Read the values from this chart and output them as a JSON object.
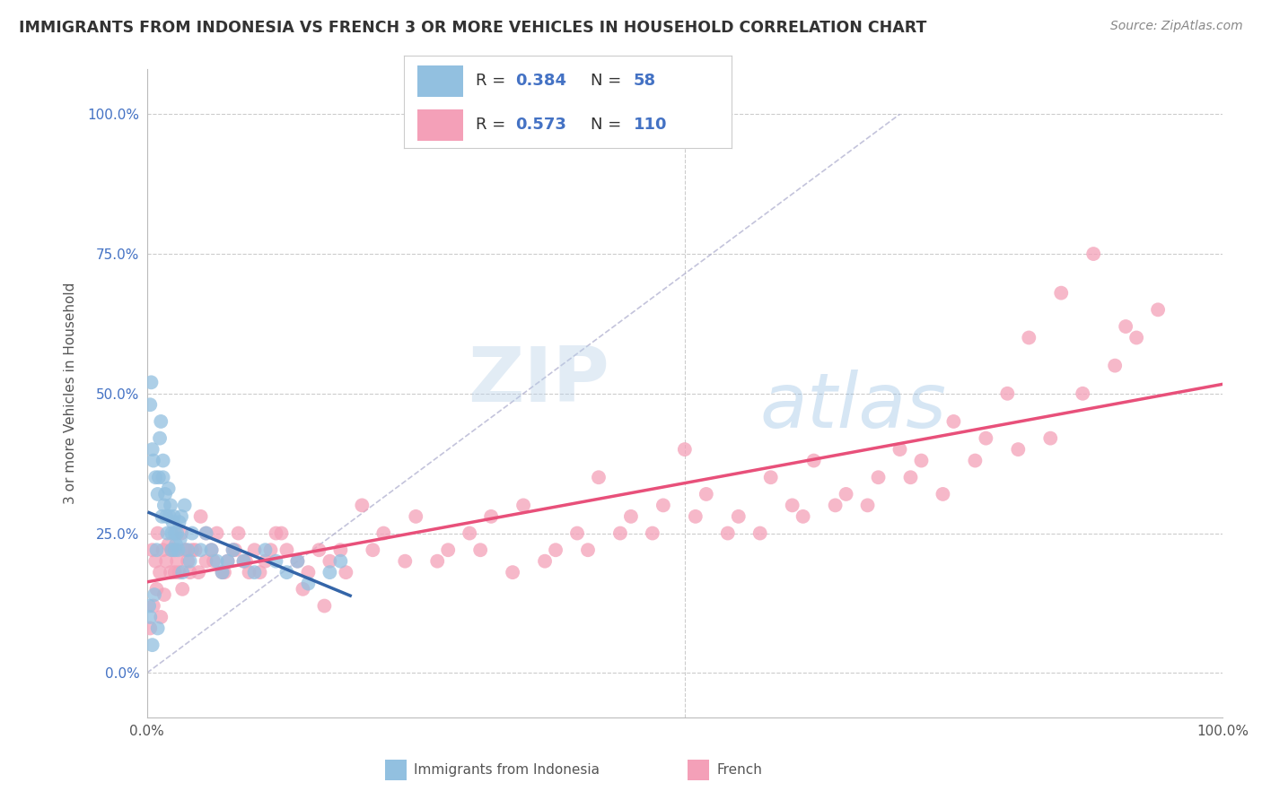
{
  "title": "IMMIGRANTS FROM INDONESIA VS FRENCH 3 OR MORE VEHICLES IN HOUSEHOLD CORRELATION CHART",
  "source": "Source: ZipAtlas.com",
  "ylabel": "3 or more Vehicles in Household",
  "watermark_zip": "ZIP",
  "watermark_atlas": "atlas",
  "legend_blue_label": "Immigrants from Indonesia",
  "legend_pink_label": "French",
  "R_blue": 0.384,
  "N_blue": 58,
  "R_pink": 0.573,
  "N_pink": 110,
  "blue_color": "#92c0e0",
  "pink_color": "#f4a0b8",
  "trend_blue": "#3465a8",
  "trend_pink": "#e8507a",
  "blue_scatter_x": [
    0.2,
    0.3,
    0.3,
    0.4,
    0.5,
    0.5,
    0.6,
    0.7,
    0.8,
    0.9,
    1.0,
    1.1,
    1.2,
    1.3,
    1.4,
    1.5,
    1.5,
    1.6,
    1.7,
    1.8,
    1.9,
    2.0,
    2.1,
    2.2,
    2.3,
    2.3,
    2.4,
    2.5,
    2.6,
    2.6,
    2.7,
    2.8,
    2.9,
    3.0,
    3.1,
    3.2,
    3.3,
    3.5,
    3.8,
    4.0,
    4.2,
    5.0,
    5.5,
    6.0,
    6.5,
    7.0,
    7.5,
    8.0,
    9.0,
    10.0,
    11.0,
    12.0,
    13.0,
    14.0,
    15.0,
    17.0,
    18.0,
    1.0
  ],
  "blue_scatter_y": [
    12.0,
    48.0,
    10.0,
    52.0,
    40.0,
    5.0,
    38.0,
    14.0,
    35.0,
    22.0,
    32.0,
    35.0,
    42.0,
    45.0,
    28.0,
    35.0,
    38.0,
    30.0,
    32.0,
    28.0,
    25.0,
    33.0,
    28.0,
    30.0,
    25.0,
    22.0,
    27.0,
    28.0,
    25.0,
    22.0,
    23.0,
    25.0,
    22.0,
    27.0,
    24.0,
    28.0,
    18.0,
    30.0,
    22.0,
    20.0,
    25.0,
    22.0,
    25.0,
    22.0,
    20.0,
    18.0,
    20.0,
    22.0,
    20.0,
    18.0,
    22.0,
    20.0,
    18.0,
    20.0,
    16.0,
    18.0,
    20.0,
    8.0
  ],
  "pink_scatter_x": [
    0.3,
    0.5,
    0.6,
    0.8,
    0.9,
    1.0,
    1.2,
    1.3,
    1.5,
    1.6,
    1.8,
    2.0,
    2.2,
    2.3,
    2.5,
    2.6,
    2.8,
    3.0,
    3.2,
    3.3,
    3.5,
    3.6,
    3.8,
    4.0,
    4.2,
    4.5,
    4.8,
    5.0,
    5.5,
    5.5,
    6.0,
    6.2,
    6.5,
    7.0,
    7.2,
    7.5,
    8.0,
    8.2,
    8.5,
    9.0,
    9.2,
    9.5,
    10.0,
    10.5,
    11.0,
    11.5,
    12.0,
    12.5,
    13.0,
    14.0,
    14.5,
    15.0,
    16.0,
    16.5,
    17.0,
    18.0,
    18.5,
    20.0,
    21.0,
    22.0,
    24.0,
    25.0,
    27.0,
    28.0,
    30.0,
    31.0,
    32.0,
    34.0,
    35.0,
    37.0,
    38.0,
    40.0,
    41.0,
    42.0,
    44.0,
    45.0,
    47.0,
    48.0,
    50.0,
    51.0,
    52.0,
    54.0,
    55.0,
    57.0,
    58.0,
    60.0,
    61.0,
    62.0,
    64.0,
    65.0,
    67.0,
    68.0,
    70.0,
    71.0,
    72.0,
    74.0,
    75.0,
    77.0,
    78.0,
    80.0,
    81.0,
    82.0,
    84.0,
    85.0,
    87.0,
    88.0,
    90.0,
    91.0,
    92.0,
    94.0
  ],
  "pink_scatter_y": [
    8.0,
    22.0,
    12.0,
    20.0,
    15.0,
    25.0,
    18.0,
    10.0,
    22.0,
    14.0,
    20.0,
    23.0,
    18.0,
    22.0,
    22.0,
    18.0,
    20.0,
    18.0,
    25.0,
    15.0,
    22.0,
    22.0,
    20.0,
    18.0,
    22.0,
    22.0,
    18.0,
    28.0,
    20.0,
    25.0,
    22.0,
    20.0,
    25.0,
    18.0,
    18.0,
    20.0,
    22.0,
    22.0,
    25.0,
    20.0,
    20.0,
    18.0,
    22.0,
    18.0,
    20.0,
    22.0,
    25.0,
    25.0,
    22.0,
    20.0,
    15.0,
    18.0,
    22.0,
    12.0,
    20.0,
    22.0,
    18.0,
    30.0,
    22.0,
    25.0,
    20.0,
    28.0,
    20.0,
    22.0,
    25.0,
    22.0,
    28.0,
    18.0,
    30.0,
    20.0,
    22.0,
    25.0,
    22.0,
    35.0,
    25.0,
    28.0,
    25.0,
    30.0,
    40.0,
    28.0,
    32.0,
    25.0,
    28.0,
    25.0,
    35.0,
    30.0,
    28.0,
    38.0,
    30.0,
    32.0,
    30.0,
    35.0,
    40.0,
    35.0,
    38.0,
    32.0,
    45.0,
    38.0,
    42.0,
    50.0,
    40.0,
    60.0,
    42.0,
    68.0,
    50.0,
    75.0,
    55.0,
    62.0,
    60.0,
    65.0
  ],
  "xlim": [
    0,
    100
  ],
  "ylim": [
    -8,
    108
  ],
  "bg_color": "#ffffff",
  "grid_color": "#cccccc",
  "diag_color": "#aaaacc"
}
